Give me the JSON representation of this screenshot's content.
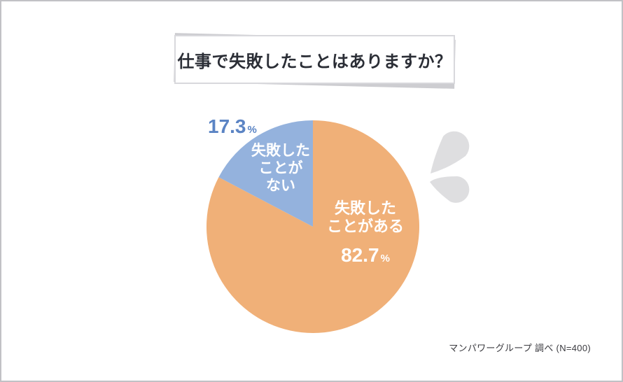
{
  "title": {
    "text": "仕事で失敗したことはありますか？"
  },
  "chart_data": {
    "type": "pie",
    "title": "仕事で失敗したことはありますか？",
    "unit": "%",
    "start_angle": "12-oclock",
    "direction": "clockwise",
    "slices": [
      {
        "label": "失敗したことがある",
        "value": 82.7,
        "color": "#f0b078",
        "label_color": "#ffffff"
      },
      {
        "label": "失敗したことがない",
        "value": 17.3,
        "color": "#94b2dd",
        "label_color": "#ffffff"
      }
    ],
    "annotations": {
      "no_percent_color": "#5b84c4",
      "sample_note": "マンパワーグループ 調べ (N=400)"
    }
  },
  "labels": {
    "percent_sign": "%",
    "yes_lines": [
      "失敗した",
      "ことがある"
    ],
    "no_lines": [
      "失敗した",
      "ことが",
      "ない"
    ]
  },
  "source": {
    "text": "マンパワーグループ 調べ (N=400)"
  },
  "decor": {
    "sweat_drops_color": "#dedee0"
  }
}
